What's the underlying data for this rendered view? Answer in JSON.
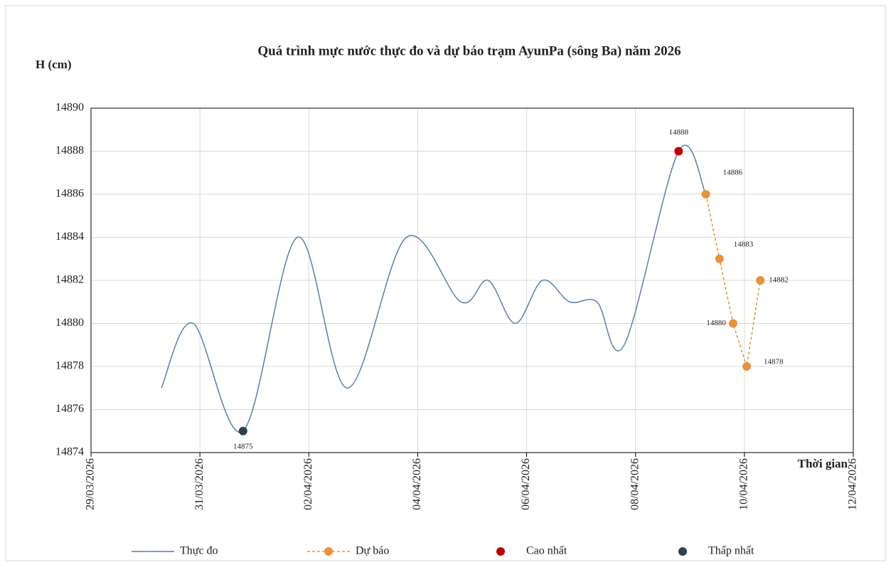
{
  "chart_data": {
    "type": "line",
    "title": "Quá trình mực nước thực đo và dự báo trạm AyunPa (sông Ba) năm 2026",
    "y_label": "H (cm)",
    "x_label": "Thời gian",
    "xlim": [
      "2026-03-29",
      "2026-04-12"
    ],
    "xticks": [
      {
        "value": "2026-03-29",
        "label": "29/03/2026"
      },
      {
        "value": "2026-03-31",
        "label": "31/03/2026"
      },
      {
        "value": "2026-04-02",
        "label": "02/04/2026"
      },
      {
        "value": "2026-04-04",
        "label": "04/04/2026"
      },
      {
        "value": "2026-04-06",
        "label": "06/04/2026"
      },
      {
        "value": "2026-04-08",
        "label": "08/04/2026"
      },
      {
        "value": "2026-04-10",
        "label": "10/04/2026"
      },
      {
        "value": "2026-04-12",
        "label": "12/04/2026"
      }
    ],
    "ylim": [
      14874,
      14890
    ],
    "yticks": [
      14874,
      14876,
      14878,
      14880,
      14882,
      14884,
      14886,
      14888,
      14890
    ],
    "grid": true,
    "legend": "bottom",
    "series": [
      {
        "name": "Thực đo",
        "color": "#5b7fad",
        "style": "solid",
        "smooth": true,
        "markers": false,
        "x": [
          "2026-03-30 07:00",
          "2026-03-30 21:00",
          "2026-03-31 19:00",
          "2026-04-01 19:00",
          "2026-04-02 17:00",
          "2026-04-03 19:00",
          "2026-04-04 19:00",
          "2026-04-05 07:00",
          "2026-04-05 19:00",
          "2026-04-06 07:00",
          "2026-04-06 19:00",
          "2026-04-07 07:00",
          "2026-04-07 19:00",
          "2026-04-08 19:00",
          "2026-04-09 07:00"
        ],
        "values": [
          14877,
          14880,
          14875,
          14884,
          14877,
          14884,
          14881,
          14882,
          14880,
          14882,
          14881,
          14881,
          14879,
          14888,
          14886
        ]
      },
      {
        "name": "Dự báo",
        "color": "#e8923a",
        "style": "dashed",
        "smooth": false,
        "markers": true,
        "labels": true,
        "x": [
          "2026-04-09 07:00",
          "2026-04-09 13:00",
          "2026-04-09 19:00",
          "2026-04-10 01:00",
          "2026-04-10 07:00"
        ],
        "values": [
          14886,
          14883,
          14880,
          14878,
          14882
        ]
      },
      {
        "name": "Cao nhất",
        "color": "#c00000",
        "style": "none",
        "markers": true,
        "labels": true,
        "x": [
          "2026-04-08 19:00"
        ],
        "values": [
          14888
        ]
      },
      {
        "name": "Thấp nhất",
        "color": "#2e3f50",
        "style": "none",
        "markers": true,
        "labels": true,
        "x": [
          "2026-03-31 19:00"
        ],
        "values": [
          14875
        ]
      }
    ]
  }
}
